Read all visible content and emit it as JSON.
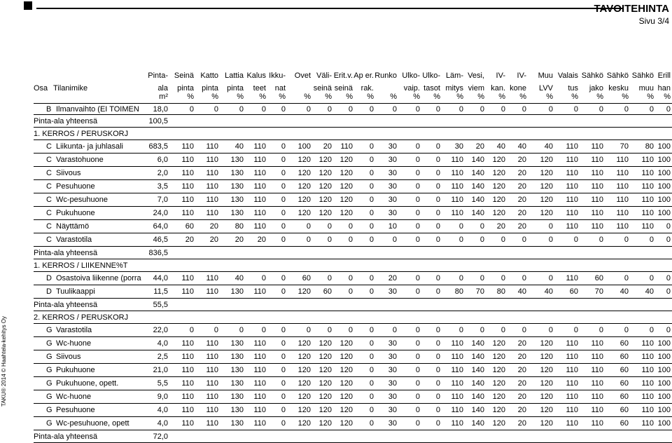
{
  "header": {
    "title": "TAVOITEHINTA",
    "page": "Sivu 3/4"
  },
  "side_text": "TAKU® 2014 © Haahtela-kehitys Oy",
  "columns": [
    {
      "l1": "",
      "l2": "Osa",
      "l3": ""
    },
    {
      "l1": "",
      "l2": "Tilanimike",
      "l3": ""
    },
    {
      "l1": "Pinta-",
      "l2": "ala",
      "l3": "m²"
    },
    {
      "l1": "Seinä",
      "l2": "pinta",
      "l3": "%"
    },
    {
      "l1": "Katto",
      "l2": "pinta",
      "l3": "%"
    },
    {
      "l1": "Lattia",
      "l2": "pinta",
      "l3": "%"
    },
    {
      "l1": "Kalus",
      "l2": "teet",
      "l3": "%"
    },
    {
      "l1": "Ikku-",
      "l2": "nat",
      "l3": "%"
    },
    {
      "l1": "Ovet",
      "l2": "",
      "l3": "%"
    },
    {
      "l1": "Väli-",
      "l2": "seinä",
      "l3": "%"
    },
    {
      "l1": "Erit.v.",
      "l2": "seinä",
      "l3": "%"
    },
    {
      "l1": "Ap er.",
      "l2": "rak.",
      "l3": "%"
    },
    {
      "l1": "Runko",
      "l2": "",
      "l3": "%"
    },
    {
      "l1": "Ulko-",
      "l2": "vaip.",
      "l3": "%"
    },
    {
      "l1": "Ulko-",
      "l2": "tasot",
      "l3": "%"
    },
    {
      "l1": "Läm-",
      "l2": "mitys",
      "l3": "%"
    },
    {
      "l1": "Vesi,",
      "l2": "viem",
      "l3": "%"
    },
    {
      "l1": "IV-",
      "l2": "kan.",
      "l3": "%"
    },
    {
      "l1": "IV-",
      "l2": "kone",
      "l3": "%"
    },
    {
      "l1": "Muu",
      "l2": "LVV",
      "l3": "%"
    },
    {
      "l1": "Valais",
      "l2": "tus",
      "l3": "%"
    },
    {
      "l1": "Sähkö",
      "l2": "jako",
      "l3": "%"
    },
    {
      "l1": "Sähkö",
      "l2": "kesku",
      "l3": "%"
    },
    {
      "l1": "Sähkö",
      "l2": "muu",
      "l3": "%"
    },
    {
      "l1": "Erill",
      "l2": "han",
      "l3": "%"
    }
  ],
  "rows": [
    {
      "kind": "data",
      "osa": "B",
      "name": "Ilmanvaihto (EI TOIMEN",
      "area": "18,0",
      "v": [
        "0",
        "0",
        "0",
        "0",
        "0",
        "0",
        "0",
        "0",
        "0",
        "0",
        "0",
        "0",
        "0",
        "0",
        "0",
        "0",
        "0",
        "0",
        "0",
        "0",
        "0",
        "0"
      ]
    },
    {
      "kind": "sum",
      "label": "Pinta-ala yhteensä",
      "area": "100,5"
    },
    {
      "kind": "section",
      "label": "1. KERROS / PERUSKORJ"
    },
    {
      "kind": "data",
      "osa": "C",
      "name": "Liikunta- ja juhlasali",
      "area": "683,5",
      "v": [
        "110",
        "110",
        "40",
        "110",
        "0",
        "100",
        "20",
        "110",
        "0",
        "30",
        "0",
        "0",
        "30",
        "20",
        "40",
        "40",
        "40",
        "110",
        "110",
        "70",
        "80",
        "100"
      ]
    },
    {
      "kind": "data",
      "osa": "C",
      "name": "Varastohuone",
      "area": "6,0",
      "v": [
        "110",
        "110",
        "130",
        "110",
        "0",
        "120",
        "120",
        "120",
        "0",
        "30",
        "0",
        "0",
        "110",
        "140",
        "120",
        "20",
        "120",
        "110",
        "110",
        "110",
        "110",
        "100"
      ]
    },
    {
      "kind": "data",
      "osa": "C",
      "name": "Siivous",
      "area": "2,0",
      "v": [
        "110",
        "110",
        "130",
        "110",
        "0",
        "120",
        "120",
        "120",
        "0",
        "30",
        "0",
        "0",
        "110",
        "140",
        "120",
        "20",
        "120",
        "110",
        "110",
        "110",
        "110",
        "100"
      ]
    },
    {
      "kind": "data",
      "osa": "C",
      "name": "Pesuhuone",
      "area": "3,5",
      "v": [
        "110",
        "110",
        "130",
        "110",
        "0",
        "120",
        "120",
        "120",
        "0",
        "30",
        "0",
        "0",
        "110",
        "140",
        "120",
        "20",
        "120",
        "110",
        "110",
        "110",
        "110",
        "100"
      ]
    },
    {
      "kind": "data",
      "osa": "C",
      "name": "Wc-pesuhuone",
      "area": "7,0",
      "v": [
        "110",
        "110",
        "130",
        "110",
        "0",
        "120",
        "120",
        "120",
        "0",
        "30",
        "0",
        "0",
        "110",
        "140",
        "120",
        "20",
        "120",
        "110",
        "110",
        "110",
        "110",
        "100"
      ]
    },
    {
      "kind": "data",
      "osa": "C",
      "name": "Pukuhuone",
      "area": "24,0",
      "v": [
        "110",
        "110",
        "130",
        "110",
        "0",
        "120",
        "120",
        "120",
        "0",
        "30",
        "0",
        "0",
        "110",
        "140",
        "120",
        "20",
        "120",
        "110",
        "110",
        "110",
        "110",
        "100"
      ]
    },
    {
      "kind": "data",
      "osa": "C",
      "name": "Näyttämö",
      "area": "64,0",
      "v": [
        "60",
        "20",
        "80",
        "110",
        "0",
        "0",
        "0",
        "0",
        "0",
        "10",
        "0",
        "0",
        "0",
        "0",
        "20",
        "20",
        "0",
        "110",
        "110",
        "110",
        "110",
        "0"
      ]
    },
    {
      "kind": "data",
      "osa": "C",
      "name": "Varastotila",
      "area": "46,5",
      "v": [
        "20",
        "20",
        "20",
        "20",
        "0",
        "0",
        "0",
        "0",
        "0",
        "0",
        "0",
        "0",
        "0",
        "0",
        "0",
        "0",
        "0",
        "0",
        "0",
        "0",
        "0",
        "0"
      ]
    },
    {
      "kind": "sum",
      "label": "Pinta-ala yhteensä",
      "area": "836,5"
    },
    {
      "kind": "section",
      "label": "1. KERROS / LIIKENNE%T"
    },
    {
      "kind": "data",
      "osa": "D",
      "name": "Osastoiva liikenne (porra",
      "area": "44,0",
      "v": [
        "110",
        "110",
        "40",
        "0",
        "0",
        "60",
        "0",
        "0",
        "0",
        "20",
        "0",
        "0",
        "0",
        "0",
        "0",
        "0",
        "0",
        "110",
        "60",
        "0",
        "0",
        "0"
      ]
    },
    {
      "kind": "data",
      "osa": "D",
      "name": "Tuulikaappi",
      "area": "11,5",
      "v": [
        "110",
        "110",
        "130",
        "110",
        "0",
        "120",
        "60",
        "0",
        "0",
        "30",
        "0",
        "0",
        "80",
        "70",
        "80",
        "40",
        "40",
        "60",
        "70",
        "40",
        "40",
        "0"
      ]
    },
    {
      "kind": "sum",
      "label": "Pinta-ala yhteensä",
      "area": "55,5"
    },
    {
      "kind": "section",
      "label": "2. KERROS / PERUSKORJ"
    },
    {
      "kind": "data",
      "osa": "G",
      "name": "Varastotila",
      "area": "22,0",
      "v": [
        "0",
        "0",
        "0",
        "0",
        "0",
        "0",
        "0",
        "0",
        "0",
        "0",
        "0",
        "0",
        "0",
        "0",
        "0",
        "0",
        "0",
        "0",
        "0",
        "0",
        "0",
        "0"
      ]
    },
    {
      "kind": "data",
      "osa": "G",
      "name": "Wc-huone",
      "area": "4,0",
      "v": [
        "110",
        "110",
        "130",
        "110",
        "0",
        "120",
        "120",
        "120",
        "0",
        "30",
        "0",
        "0",
        "110",
        "140",
        "120",
        "20",
        "120",
        "110",
        "110",
        "60",
        "110",
        "100"
      ]
    },
    {
      "kind": "data",
      "osa": "G",
      "name": "Siivous",
      "area": "2,5",
      "v": [
        "110",
        "110",
        "130",
        "110",
        "0",
        "120",
        "120",
        "120",
        "0",
        "30",
        "0",
        "0",
        "110",
        "140",
        "120",
        "20",
        "120",
        "110",
        "110",
        "60",
        "110",
        "100"
      ]
    },
    {
      "kind": "data",
      "osa": "G",
      "name": "Pukuhuone",
      "area": "21,0",
      "v": [
        "110",
        "110",
        "130",
        "110",
        "0",
        "120",
        "120",
        "120",
        "0",
        "30",
        "0",
        "0",
        "110",
        "140",
        "120",
        "20",
        "120",
        "110",
        "110",
        "60",
        "110",
        "100"
      ]
    },
    {
      "kind": "data",
      "osa": "G",
      "name": "Pukuhuone, opett.",
      "area": "5,5",
      "v": [
        "110",
        "110",
        "130",
        "110",
        "0",
        "120",
        "120",
        "120",
        "0",
        "30",
        "0",
        "0",
        "110",
        "140",
        "120",
        "20",
        "120",
        "110",
        "110",
        "60",
        "110",
        "100"
      ]
    },
    {
      "kind": "data",
      "osa": "G",
      "name": "Wc-huone",
      "area": "9,0",
      "v": [
        "110",
        "110",
        "130",
        "110",
        "0",
        "120",
        "120",
        "120",
        "0",
        "30",
        "0",
        "0",
        "110",
        "140",
        "120",
        "20",
        "120",
        "110",
        "110",
        "60",
        "110",
        "100"
      ]
    },
    {
      "kind": "data",
      "osa": "G",
      "name": "Pesuhuone",
      "area": "4,0",
      "v": [
        "110",
        "110",
        "130",
        "110",
        "0",
        "120",
        "120",
        "120",
        "0",
        "30",
        "0",
        "0",
        "110",
        "140",
        "120",
        "20",
        "120",
        "110",
        "110",
        "60",
        "110",
        "100"
      ]
    },
    {
      "kind": "data",
      "osa": "G",
      "name": "Wc-pesuhuone, opett",
      "area": "4,0",
      "v": [
        "110",
        "110",
        "130",
        "110",
        "0",
        "120",
        "120",
        "120",
        "0",
        "30",
        "0",
        "0",
        "110",
        "140",
        "120",
        "20",
        "120",
        "110",
        "110",
        "60",
        "110",
        "100"
      ]
    },
    {
      "kind": "sum",
      "label": "Pinta-ala yhteensä",
      "area": "72,0"
    }
  ]
}
